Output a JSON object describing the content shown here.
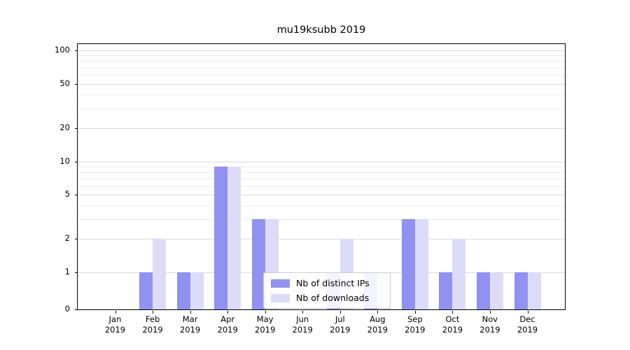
{
  "chart_data": {
    "type": "bar",
    "title": "mu19ksubb 2019",
    "categories": [
      "Jan",
      "Feb",
      "Mar",
      "Apr",
      "May",
      "Jun",
      "Jul",
      "Aug",
      "Sep",
      "Oct",
      "Nov",
      "Dec"
    ],
    "year": "2019",
    "series": [
      {
        "name": "Nb of distinct IPs",
        "color": "#9191f0",
        "values": [
          0,
          1,
          1,
          9,
          3,
          0,
          1,
          1,
          3,
          1,
          1,
          1
        ]
      },
      {
        "name": "Nb of downloads",
        "color": "#dcdcf9",
        "values": [
          0,
          2,
          1,
          9,
          3,
          0,
          2,
          1,
          3,
          2,
          1,
          1
        ]
      }
    ],
    "yticks": [
      0,
      1,
      2,
      5,
      10,
      20,
      50,
      100
    ],
    "yminor_gridlines": [
      3,
      4,
      6,
      7,
      8,
      9,
      30,
      40,
      60,
      70,
      80,
      90
    ],
    "yscale": "symlog",
    "ylim": [
      0,
      100
    ],
    "grid": true,
    "legend_position": "lower center",
    "colors": {
      "grid_major": "#d9d9d9",
      "grid_minor": "#ededed",
      "axis": "#000000"
    }
  }
}
